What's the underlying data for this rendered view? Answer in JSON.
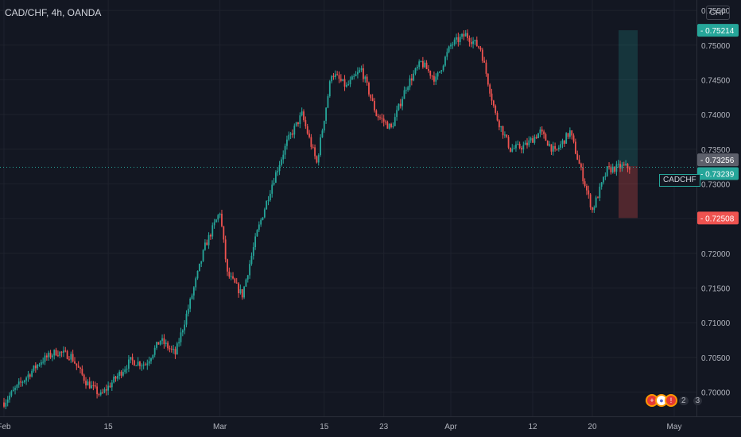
{
  "header": {
    "title": "CAD/CHF, 4h, OANDA",
    "currency": "CHF"
  },
  "symbol_label": "CADCHF",
  "colors": {
    "up": "#26a69a",
    "down": "#ef5350",
    "grid": "#1e222d",
    "background": "#131722"
  },
  "events": {
    "count_label": "2",
    "extra_label": "3",
    "icons": [
      "flag-icon",
      "drop-icon",
      "note-icon"
    ]
  },
  "chart_data": {
    "type": "candlestick",
    "title": "CAD/CHF, 4h, OANDA",
    "xlabel": "",
    "ylabel": "",
    "ylim": [
      0.6965,
      0.7565
    ],
    "grid": true,
    "x_ticks": [
      "Feb",
      "15",
      "Mar",
      "15",
      "23",
      "Apr",
      "12",
      "20",
      "May"
    ],
    "y_ticks": [
      "0.75500",
      "0.75000",
      "0.74500",
      "0.74000",
      "0.73500",
      "0.73000",
      "0.72500",
      "0.72000",
      "0.71500",
      "0.71000",
      "0.70500",
      "0.70000"
    ],
    "price_labels": [
      {
        "label": "0.75214",
        "value": 0.75214,
        "kind": "target"
      },
      {
        "label": "0.73256",
        "value": 0.73256,
        "kind": "entry"
      },
      {
        "label": "0.73239",
        "value": 0.73239,
        "kind": "last"
      },
      {
        "label": "0.72508",
        "value": 0.72508,
        "kind": "stop"
      }
    ],
    "position": {
      "entry": 0.73256,
      "target": 0.75214,
      "stop": 0.72508
    },
    "trend": [
      [
        "2024-02-01",
        0.6985
      ],
      [
        "2024-02-03",
        0.701
      ],
      [
        "2024-02-06",
        0.7045
      ],
      [
        "2024-02-08",
        0.7058
      ],
      [
        "2024-02-10",
        0.7052
      ],
      [
        "2024-02-12",
        0.7015
      ],
      [
        "2024-02-14",
        0.6995
      ],
      [
        "2024-02-16",
        0.702
      ],
      [
        "2024-02-18",
        0.7045
      ],
      [
        "2024-02-20",
        0.704
      ],
      [
        "2024-02-22",
        0.7075
      ],
      [
        "2024-02-24",
        0.7055
      ],
      [
        "2024-02-26",
        0.713
      ],
      [
        "2024-02-28",
        0.721
      ],
      [
        "2024-03-01",
        0.726
      ],
      [
        "2024-03-02",
        0.717
      ],
      [
        "2024-03-04",
        0.714
      ],
      [
        "2024-03-06",
        0.723
      ],
      [
        "2024-03-08",
        0.73
      ],
      [
        "2024-03-10",
        0.736
      ],
      [
        "2024-03-12",
        0.74
      ],
      [
        "2024-03-14",
        0.733
      ],
      [
        "2024-03-16",
        0.746
      ],
      [
        "2024-03-18",
        0.744
      ],
      [
        "2024-03-20",
        0.7465
      ],
      [
        "2024-03-22",
        0.74
      ],
      [
        "2024-03-24",
        0.738
      ],
      [
        "2024-03-26",
        0.744
      ],
      [
        "2024-03-28",
        0.7475
      ],
      [
        "2024-03-30",
        0.745
      ],
      [
        "2024-04-01",
        0.75
      ],
      [
        "2024-04-03",
        0.7515
      ],
      [
        "2024-04-05",
        0.7495
      ],
      [
        "2024-04-07",
        0.74
      ],
      [
        "2024-04-09",
        0.735
      ],
      [
        "2024-04-11",
        0.7355
      ],
      [
        "2024-04-13",
        0.7375
      ],
      [
        "2024-04-15",
        0.7345
      ],
      [
        "2024-04-17",
        0.7375
      ],
      [
        "2024-04-19",
        0.73
      ],
      [
        "2024-04-20",
        0.7262
      ],
      [
        "2024-04-22",
        0.732
      ],
      [
        "2024-04-24",
        0.7325
      ],
      [
        "2024-04-25",
        0.7324
      ]
    ]
  }
}
